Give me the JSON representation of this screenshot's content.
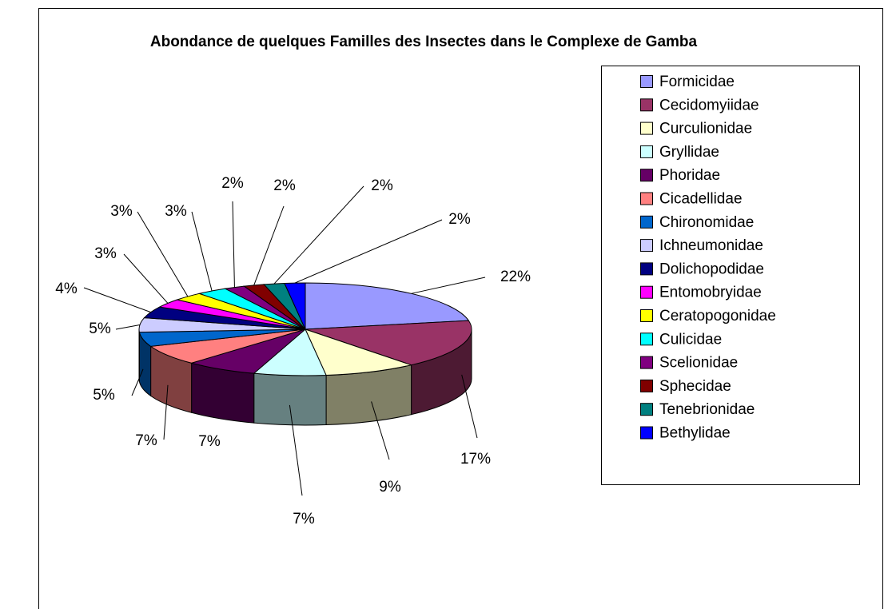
{
  "chart_data": {
    "type": "pie3d",
    "title": "Abondance de quelques Familles des Insectes dans le Complexe de Gamba",
    "categories": [
      "Formicidae",
      "Cecidomyiidae",
      "Curculionidae",
      "Gryllidae",
      "Phoridae",
      "Cicadellidae",
      "Chironomidae",
      "Ichneumonidae",
      "Dolichopodidae",
      "Entomobryidae",
      "Ceratopogonidae",
      "Culicidae",
      "Scelionidae",
      "Sphecidae",
      "Tenebrionidae",
      "Bethylidae"
    ],
    "values": [
      22,
      17,
      9,
      7,
      7,
      7,
      5,
      5,
      4,
      3,
      3,
      3,
      2,
      2,
      2,
      2
    ],
    "value_labels": [
      "22%",
      "17%",
      "9%",
      "7%",
      "7%",
      "7%",
      "5%",
      "5%",
      "4%",
      "3%",
      "3%",
      "3%",
      "2%",
      "2%",
      "2%",
      "2%"
    ],
    "colors": [
      "#9999FF",
      "#993366",
      "#FFFFCC",
      "#CCFFFF",
      "#660066",
      "#FF8080",
      "#0066CC",
      "#CCCCFF",
      "#000080",
      "#FF00FF",
      "#FFFF00",
      "#00FFFF",
      "#800080",
      "#800000",
      "#008080",
      "#0000FF"
    ],
    "legend": "right"
  }
}
